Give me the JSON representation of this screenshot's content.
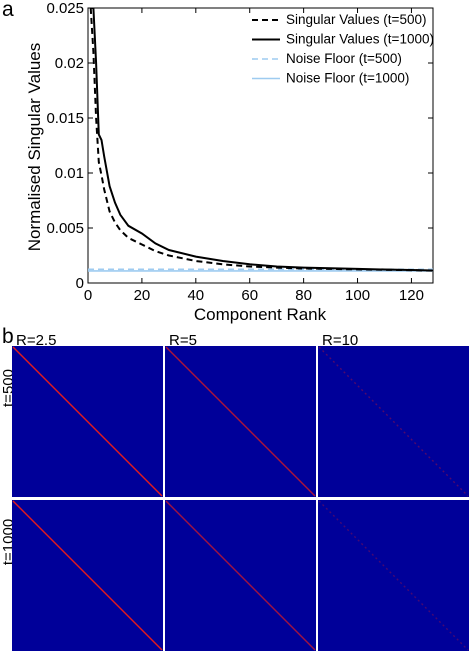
{
  "panels": {
    "a": "a",
    "b": "b"
  },
  "chart_data": [
    {
      "type": "line",
      "xlabel": "Component Rank",
      "ylabel": "Normalised Singular Values",
      "xlim": [
        0,
        128
      ],
      "ylim": [
        0,
        0.025
      ],
      "xticks": [
        "0",
        "20",
        "40",
        "60",
        "80",
        "100",
        "120"
      ],
      "yticks": [
        "0",
        "0.005",
        "0.01",
        "0.015",
        "0.02",
        "0.025"
      ],
      "grid": false,
      "legend_position": "top-right",
      "series": [
        {
          "name": "Singular Values (t=500)",
          "style": "dashed",
          "color": "#000000",
          "x": [
            1,
            2,
            3,
            4,
            5,
            6,
            8,
            10,
            12,
            15,
            20,
            25,
            30,
            40,
            50,
            60,
            70,
            80,
            90,
            100,
            110,
            120,
            128
          ],
          "y": [
            0.025,
            0.021,
            0.015,
            0.011,
            0.0098,
            0.0085,
            0.0065,
            0.0055,
            0.0048,
            0.0041,
            0.0035,
            0.0029,
            0.0025,
            0.002,
            0.0017,
            0.0015,
            0.0014,
            0.00132,
            0.00128,
            0.00124,
            0.0012,
            0.00116,
            0.00112
          ]
        },
        {
          "name": "Singular Values (t=1000)",
          "style": "solid",
          "color": "#000000",
          "x": [
            1,
            2,
            3,
            4,
            5,
            6,
            8,
            10,
            12,
            15,
            20,
            25,
            30,
            40,
            50,
            60,
            70,
            80,
            90,
            100,
            110,
            120,
            128
          ],
          "y": [
            0.025,
            0.025,
            0.02,
            0.0135,
            0.013,
            0.0115,
            0.0088,
            0.0073,
            0.0062,
            0.0052,
            0.0045,
            0.0036,
            0.003,
            0.0024,
            0.002,
            0.0017,
            0.0015,
            0.0014,
            0.00134,
            0.00128,
            0.00123,
            0.00118,
            0.00114
          ]
        },
        {
          "name": "Noise Floor (t=500)",
          "style": "dashed",
          "color": "#9ecbf0",
          "x": [
            0,
            128
          ],
          "y": [
            0.00125,
            0.00125
          ]
        },
        {
          "name": "Noise Floor (t=1000)",
          "style": "solid",
          "color": "#9ecbf0",
          "x": [
            0,
            128
          ],
          "y": [
            0.0011,
            0.0011
          ]
        }
      ]
    },
    {
      "type": "heatmap",
      "columns": [
        "R=2.5",
        "R=5",
        "R=10"
      ],
      "rows": [
        "t=500",
        "t=1000"
      ],
      "background_color": "#000099",
      "diagonal_color": "#e51b1b",
      "diagonal_strength": [
        [
          1.0,
          0.75,
          0.35
        ],
        [
          1.0,
          0.7,
          0.3
        ]
      ]
    }
  ]
}
